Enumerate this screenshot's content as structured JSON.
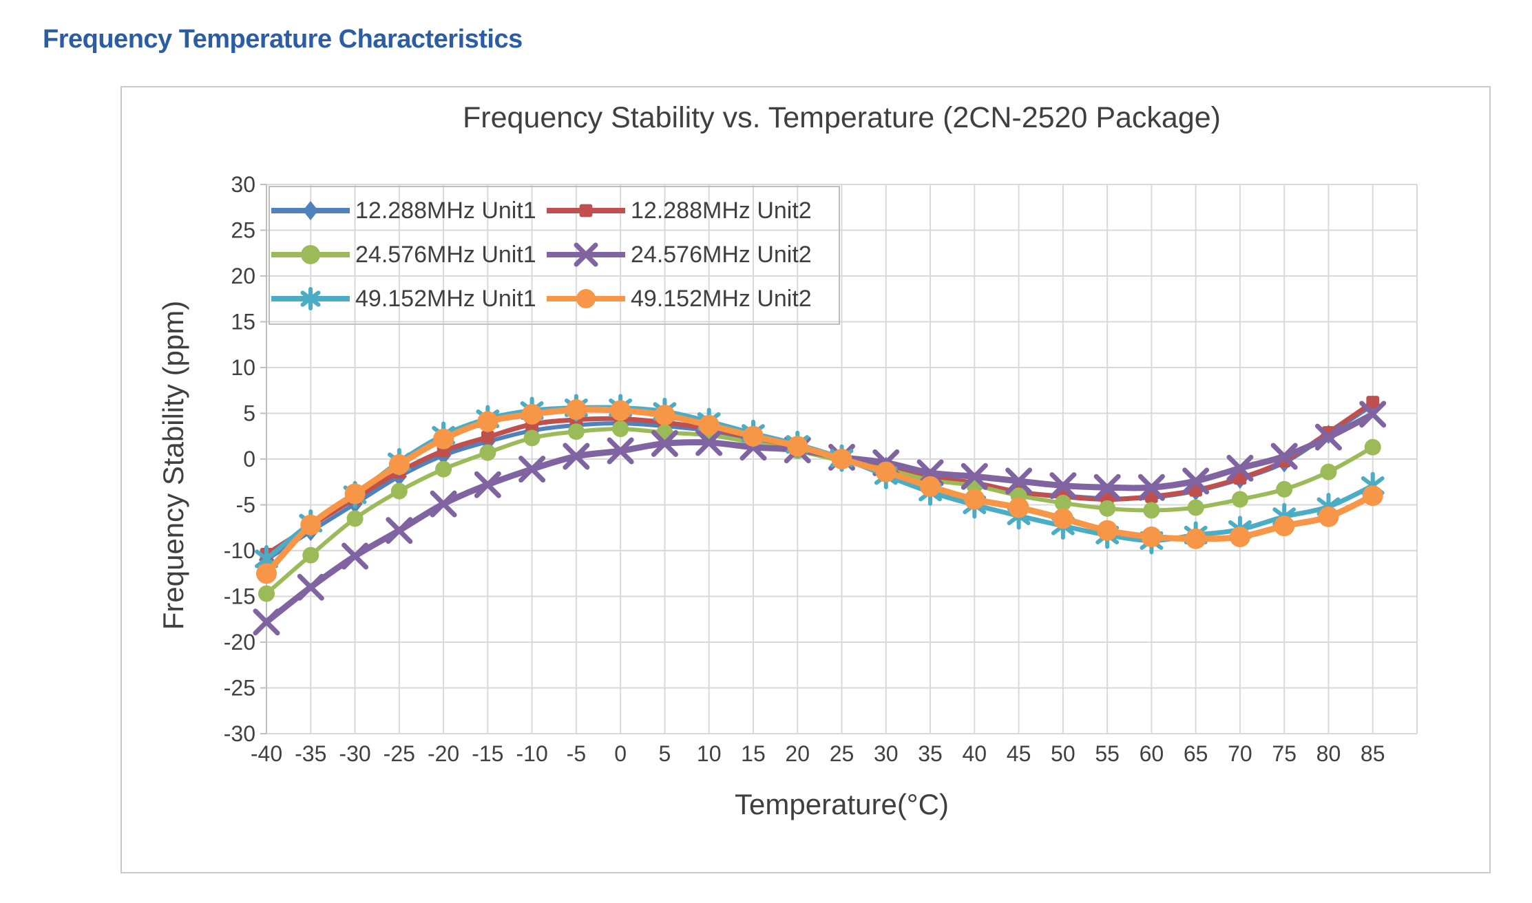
{
  "page": {
    "title": "Frequency Temperature Characteristics",
    "title_color": "#2B5DA6"
  },
  "chart_data": {
    "type": "line",
    "title": "Frequency Stability vs. Temperature (2CN-2520 Package)",
    "xlabel": "Temperature(°C)",
    "ylabel": "Frequency Stability (ppm)",
    "x": [
      -40,
      -35,
      -30,
      -25,
      -20,
      -15,
      -10,
      -5,
      0,
      5,
      10,
      15,
      20,
      25,
      30,
      35,
      40,
      45,
      50,
      55,
      60,
      65,
      70,
      75,
      80,
      85
    ],
    "ylim": [
      -30,
      30
    ],
    "ytick_step": 5,
    "grid": true,
    "legend_position": "top-left-inside",
    "colors": {
      "gridline": "#D9D9D9",
      "axis_line": "#BFBFBF",
      "tick_label": "#404040"
    },
    "series": [
      {
        "name": "12.288MHz Unit1",
        "color": "#4F81BD",
        "marker": "diamond",
        "line_width": 6,
        "values": [
          -11.0,
          -7.9,
          -4.9,
          -1.9,
          0.4,
          1.9,
          3.1,
          3.7,
          3.9,
          3.6,
          3.1,
          2.2,
          1.2,
          0.0,
          -0.8,
          -2.1,
          -2.7,
          -3.7,
          -4.0,
          -4.3,
          -4.2,
          -3.5,
          -2.2,
          -0.4,
          2.7,
          5.9
        ]
      },
      {
        "name": "12.288MHz Unit2",
        "color": "#C0504D",
        "marker": "square",
        "line_width": 7,
        "values": [
          -10.4,
          -7.3,
          -4.3,
          -1.4,
          0.9,
          2.4,
          3.8,
          4.3,
          4.4,
          4.0,
          3.3,
          2.3,
          1.3,
          0.1,
          -0.8,
          -2.0,
          -2.6,
          -3.6,
          -4.1,
          -4.4,
          -4.1,
          -3.4,
          -2.1,
          -0.2,
          2.9,
          6.2
        ]
      },
      {
        "name": "24.576MHz Unit1",
        "color": "#9BBB59",
        "marker": "circle",
        "line_width": 6,
        "values": [
          -14.7,
          -10.5,
          -6.5,
          -3.5,
          -1.1,
          0.7,
          2.3,
          3.0,
          3.3,
          2.9,
          2.6,
          1.8,
          0.9,
          -0.2,
          -1.1,
          -2.3,
          -2.9,
          -4.0,
          -4.8,
          -5.4,
          -5.6,
          -5.3,
          -4.4,
          -3.3,
          -1.4,
          1.3
        ]
      },
      {
        "name": "24.576MHz Unit2",
        "color": "#8064A2",
        "marker": "x",
        "line_width": 9,
        "values": [
          -17.8,
          -14.0,
          -10.6,
          -7.8,
          -4.9,
          -2.8,
          -1.1,
          0.3,
          0.9,
          1.7,
          1.8,
          1.3,
          1.0,
          0.2,
          -0.4,
          -1.5,
          -1.9,
          -2.4,
          -2.9,
          -3.1,
          -3.1,
          -2.4,
          -1.0,
          0.3,
          2.4,
          4.9
        ]
      },
      {
        "name": "49.152MHz Unit1",
        "color": "#4BACC6",
        "marker": "asterisk",
        "line_width": 7,
        "values": [
          -10.9,
          -7.0,
          -3.9,
          -0.3,
          2.6,
          4.4,
          5.3,
          5.6,
          5.6,
          5.2,
          4.1,
          2.8,
          1.6,
          0.1,
          -1.8,
          -3.6,
          -5.0,
          -6.2,
          -7.3,
          -8.3,
          -8.9,
          -8.3,
          -7.7,
          -6.3,
          -5.2,
          -2.9
        ]
      },
      {
        "name": "49.152MHz Unit2",
        "color": "#F79646",
        "marker": "circle",
        "line_width": 9,
        "values": [
          -12.5,
          -7.2,
          -3.8,
          -0.6,
          2.2,
          4.1,
          4.9,
          5.4,
          5.3,
          4.8,
          3.7,
          2.5,
          1.4,
          0.0,
          -1.4,
          -3.0,
          -4.4,
          -5.3,
          -6.5,
          -7.8,
          -8.5,
          -8.7,
          -8.5,
          -7.3,
          -6.3,
          -4.0
        ]
      }
    ]
  }
}
